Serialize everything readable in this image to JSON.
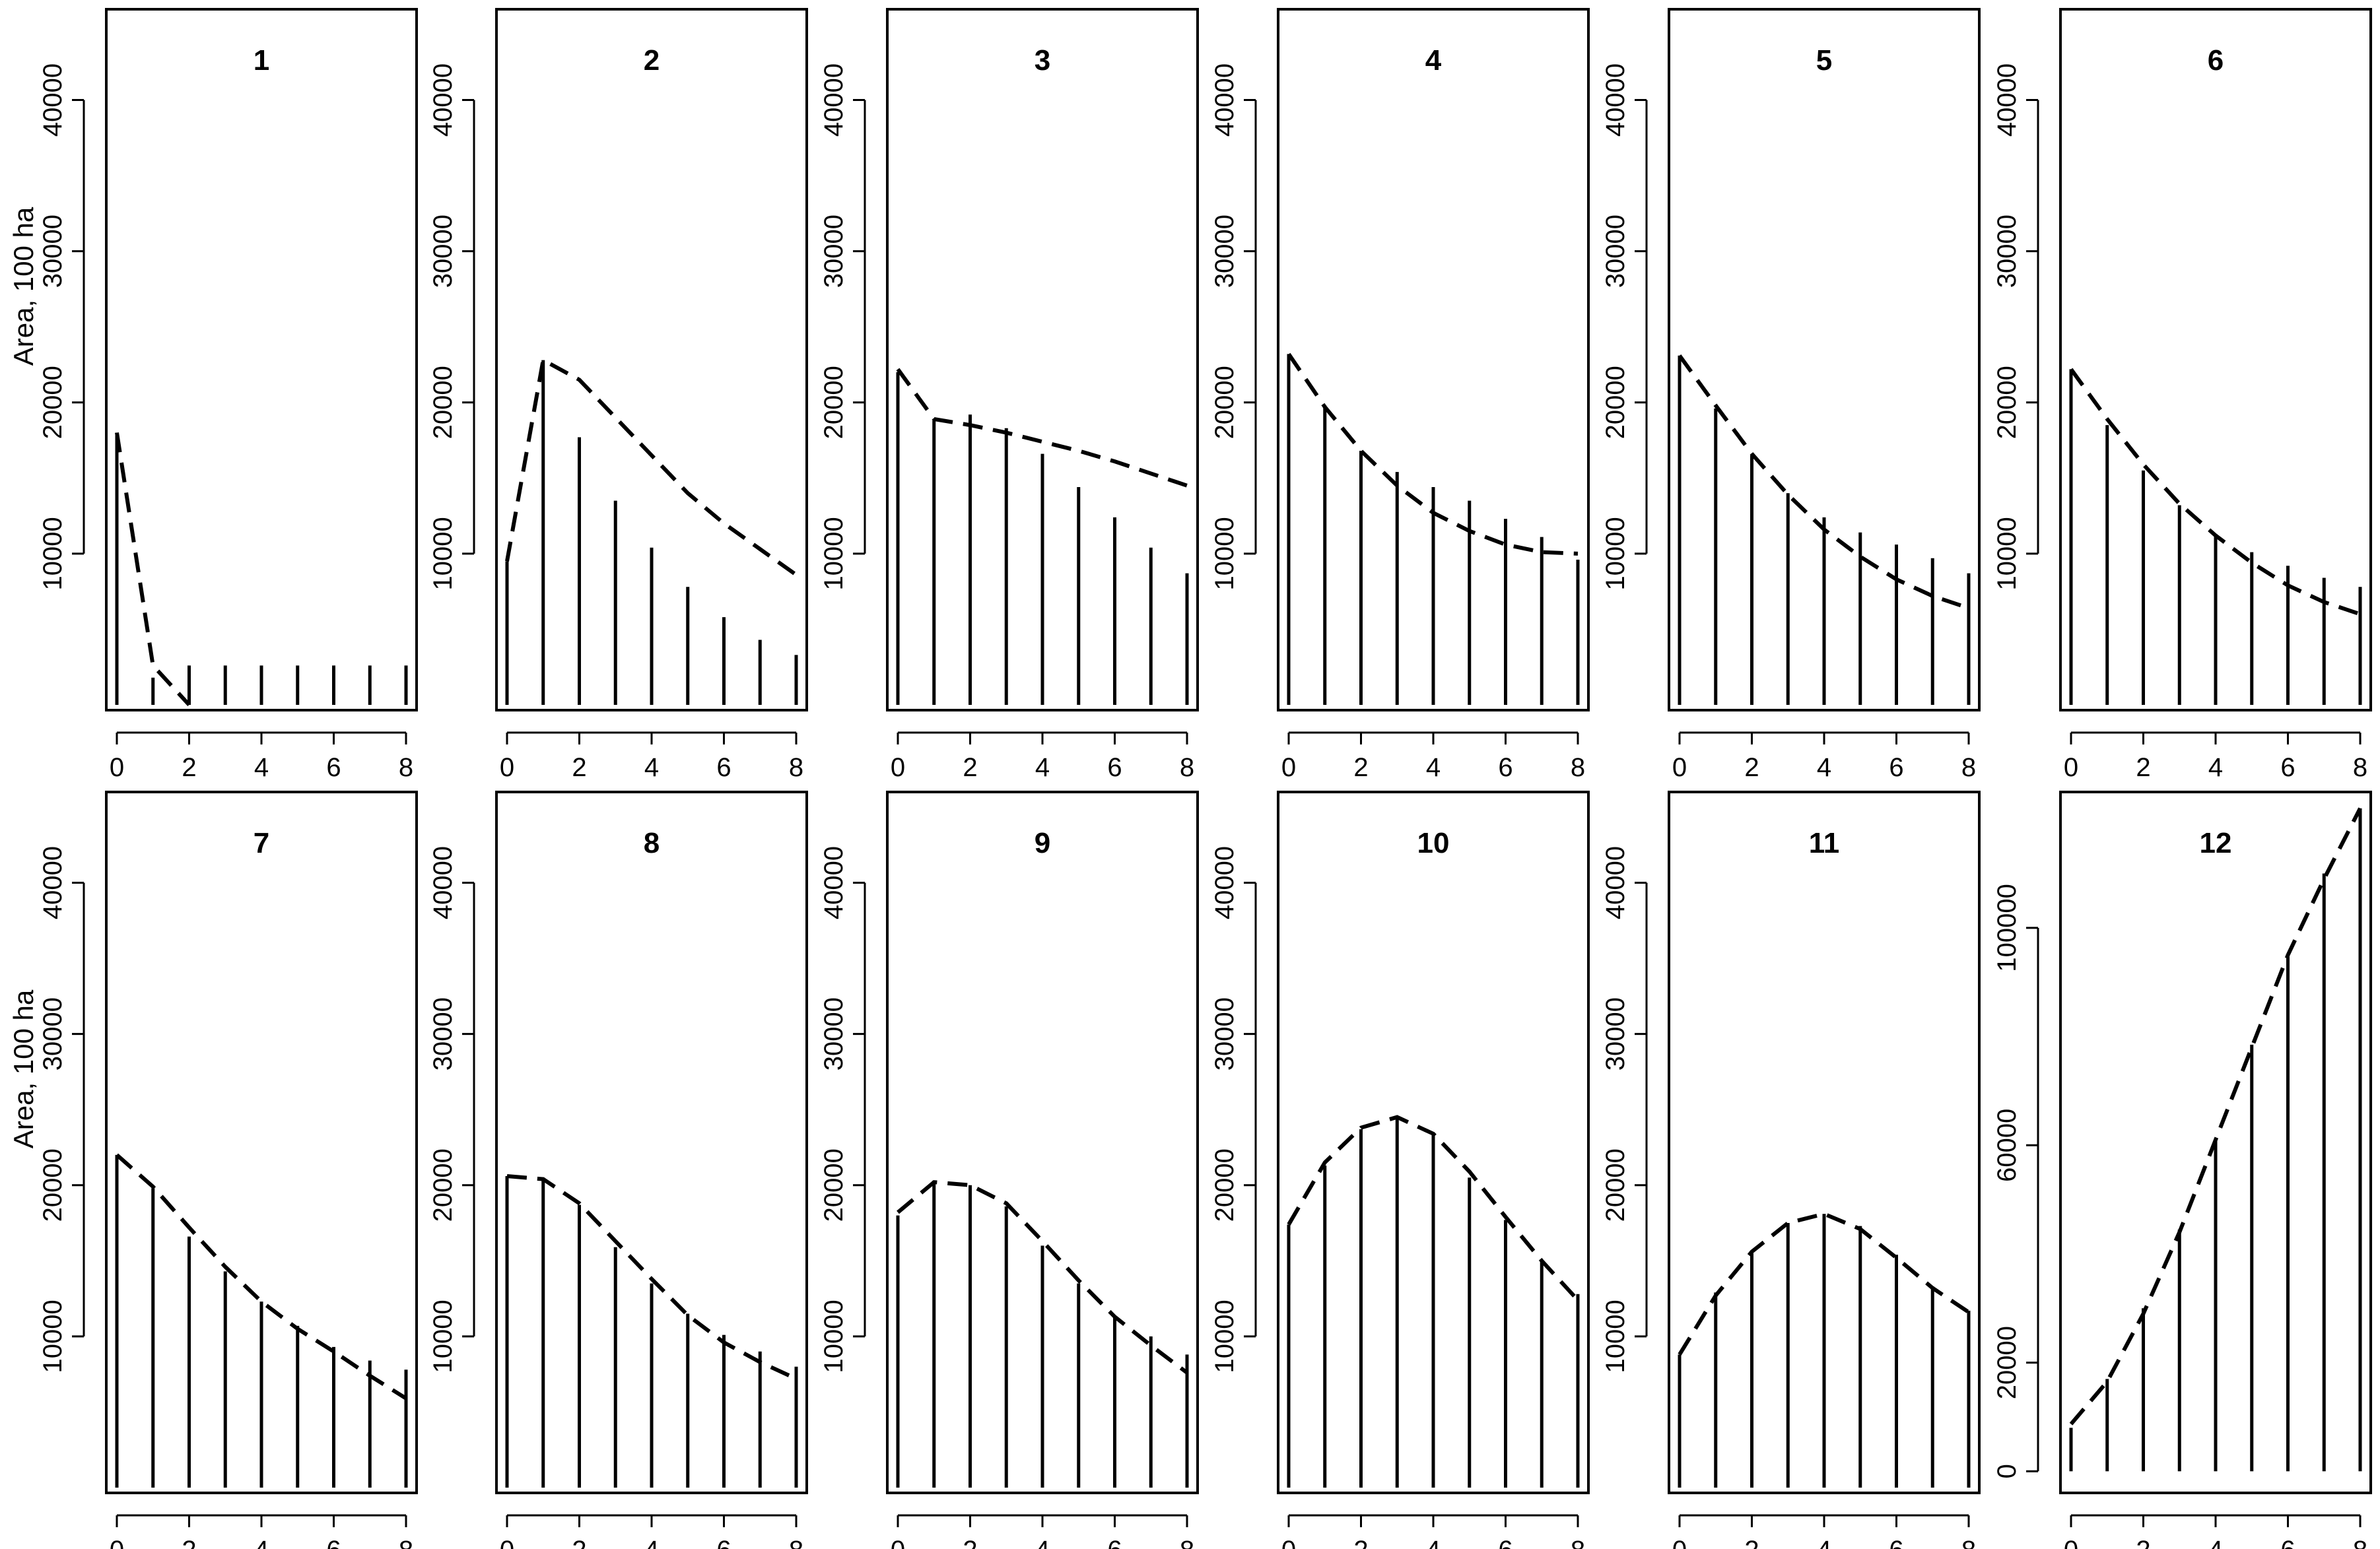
{
  "chart_data": [
    {
      "type": "bar",
      "title": "1",
      "ylabel": "Area, 100 ha",
      "x": [
        0,
        1,
        2,
        3,
        4,
        5,
        6,
        7,
        8
      ],
      "ylim": [
        0,
        46000
      ],
      "yticks": [
        10000,
        20000,
        30000,
        40000
      ],
      "xticks": [
        0,
        2,
        4,
        6,
        8
      ],
      "bars": [
        18000,
        1800,
        2600,
        2600,
        2600,
        2600,
        2600,
        2600,
        2600
      ],
      "line": [
        18000,
        2600,
        0,
        null,
        null,
        null,
        null,
        null,
        null
      ]
    },
    {
      "type": "bar",
      "title": "2",
      "ylabel": "",
      "x": [
        0,
        1,
        2,
        3,
        4,
        5,
        6,
        7,
        8
      ],
      "ylim": [
        0,
        46000
      ],
      "yticks": [
        10000,
        20000,
        30000,
        40000
      ],
      "xticks": [
        0,
        2,
        4,
        6,
        8
      ],
      "bars": [
        9500,
        22800,
        17700,
        13500,
        10400,
        7800,
        5800,
        4300,
        3300
      ],
      "line": [
        9500,
        22800,
        21500,
        19000,
        16500,
        14000,
        12000,
        10300,
        8600
      ]
    },
    {
      "type": "bar",
      "title": "3",
      "ylabel": "",
      "x": [
        0,
        1,
        2,
        3,
        4,
        5,
        6,
        7,
        8
      ],
      "ylim": [
        0,
        46000
      ],
      "yticks": [
        10000,
        20000,
        30000,
        40000
      ],
      "xticks": [
        0,
        2,
        4,
        6,
        8
      ],
      "bars": [
        22000,
        18800,
        19200,
        18300,
        16600,
        14400,
        12400,
        10400,
        8700
      ],
      "line": [
        22200,
        18900,
        18500,
        18000,
        17400,
        16800,
        16100,
        15300,
        14500
      ]
    },
    {
      "type": "bar",
      "title": "4",
      "ylabel": "",
      "x": [
        0,
        1,
        2,
        3,
        4,
        5,
        6,
        7,
        8
      ],
      "ylim": [
        0,
        46000
      ],
      "yticks": [
        10000,
        20000,
        30000,
        40000
      ],
      "xticks": [
        0,
        2,
        4,
        6,
        8
      ],
      "bars": [
        23200,
        19800,
        16800,
        15400,
        14400,
        13500,
        12300,
        11100,
        9600
      ],
      "line": [
        23200,
        19700,
        16800,
        14500,
        12700,
        11500,
        10600,
        10100,
        10000
      ]
    },
    {
      "type": "bar",
      "title": "5",
      "ylabel": "",
      "x": [
        0,
        1,
        2,
        3,
        4,
        5,
        6,
        7,
        8
      ],
      "ylim": [
        0,
        46000
      ],
      "yticks": [
        10000,
        20000,
        30000,
        40000
      ],
      "xticks": [
        0,
        2,
        4,
        6,
        8
      ],
      "bars": [
        23100,
        19600,
        16500,
        14000,
        12400,
        11400,
        10600,
        9700,
        8700
      ],
      "line": [
        23100,
        19800,
        16600,
        13900,
        11600,
        9800,
        8300,
        7200,
        6400
      ]
    },
    {
      "type": "bar",
      "title": "6",
      "ylabel": "",
      "x": [
        0,
        1,
        2,
        3,
        4,
        5,
        6,
        7,
        8
      ],
      "ylim": [
        0,
        46000
      ],
      "yticks": [
        10000,
        20000,
        30000,
        40000
      ],
      "xticks": [
        0,
        2,
        4,
        6,
        8
      ],
      "bars": [
        22200,
        18500,
        15500,
        13200,
        11300,
        10100,
        9200,
        8400,
        7800
      ],
      "line": [
        22200,
        18900,
        15900,
        13300,
        11200,
        9400,
        7900,
        6800,
        6000
      ]
    },
    {
      "type": "bar",
      "title": "7",
      "ylabel": "Area, 100 ha",
      "x": [
        0,
        1,
        2,
        3,
        4,
        5,
        6,
        7,
        8
      ],
      "ylim": [
        0,
        46000
      ],
      "yticks": [
        10000,
        20000,
        30000,
        40000
      ],
      "xticks": [
        0,
        2,
        4,
        6,
        8
      ],
      "bars": [
        22000,
        19800,
        16600,
        14300,
        12300,
        10700,
        9300,
        8400,
        7800
      ],
      "line": [
        22000,
        19900,
        17200,
        14600,
        12300,
        10500,
        9000,
        7400,
        5900
      ]
    },
    {
      "type": "bar",
      "title": "8",
      "ylabel": "",
      "x": [
        0,
        1,
        2,
        3,
        4,
        5,
        6,
        7,
        8
      ],
      "ylim": [
        0,
        46000
      ],
      "yticks": [
        10000,
        20000,
        30000,
        40000
      ],
      "xticks": [
        0,
        2,
        4,
        6,
        8
      ],
      "bars": [
        20600,
        20500,
        18700,
        15900,
        13500,
        11500,
        10100,
        9000,
        8000
      ],
      "line": [
        20600,
        20400,
        18800,
        16300,
        13800,
        11400,
        9600,
        8300,
        7200
      ]
    },
    {
      "type": "bar",
      "title": "9",
      "ylabel": "",
      "x": [
        0,
        1,
        2,
        3,
        4,
        5,
        6,
        7,
        8
      ],
      "ylim": [
        0,
        46000
      ],
      "yticks": [
        10000,
        20000,
        30000,
        40000
      ],
      "xticks": [
        0,
        2,
        4,
        6,
        8
      ],
      "bars": [
        18000,
        20300,
        20000,
        18600,
        16000,
        13500,
        11300,
        10000,
        8800
      ],
      "line": [
        18200,
        20200,
        20000,
        18800,
        16300,
        13700,
        11300,
        9400,
        7600
      ]
    },
    {
      "type": "bar",
      "title": "10",
      "ylabel": "",
      "x": [
        0,
        1,
        2,
        3,
        4,
        5,
        6,
        7,
        8
      ],
      "ylim": [
        0,
        46000
      ],
      "yticks": [
        10000,
        20000,
        30000,
        40000
      ],
      "xticks": [
        0,
        2,
        4,
        6,
        8
      ],
      "bars": [
        17400,
        21300,
        23700,
        24500,
        23400,
        20500,
        17700,
        15000,
        12800
      ],
      "line": [
        17400,
        21500,
        23800,
        24500,
        23400,
        20900,
        17900,
        15000,
        12400
      ]
    },
    {
      "type": "bar",
      "title": "11",
      "ylabel": "",
      "x": [
        0,
        1,
        2,
        3,
        4,
        5,
        6,
        7,
        8
      ],
      "ylim": [
        0,
        46000
      ],
      "yticks": [
        10000,
        20000,
        30000,
        40000
      ],
      "xticks": [
        0,
        2,
        4,
        6,
        8
      ],
      "bars": [
        8800,
        12900,
        15500,
        17500,
        18100,
        17300,
        15400,
        13300,
        11700
      ],
      "line": [
        8800,
        12700,
        15600,
        17500,
        18100,
        17100,
        15200,
        13200,
        11600
      ]
    },
    {
      "type": "bar",
      "title": "12",
      "ylabel": "",
      "x": [
        0,
        1,
        2,
        3,
        4,
        5,
        6,
        7,
        8
      ],
      "ylim": [
        -3000,
        125000
      ],
      "yticks": [
        0,
        20000,
        60000,
        100000
      ],
      "xticks": [
        0,
        2,
        4,
        6,
        8
      ],
      "bars": [
        8000,
        17000,
        30000,
        44500,
        61000,
        78500,
        95000,
        110000,
        122000
      ],
      "line": [
        8700,
        16500,
        29000,
        44000,
        61000,
        78000,
        95000,
        109000,
        122000
      ]
    }
  ]
}
